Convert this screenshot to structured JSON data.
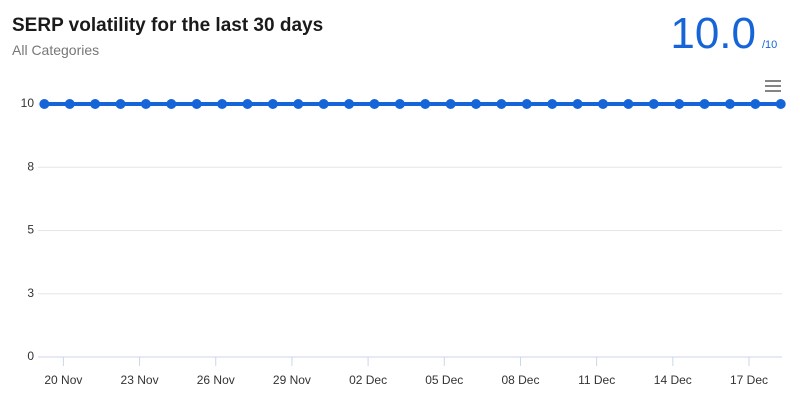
{
  "chart_data": {
    "type": "line",
    "title": "SERP volatility for the last 30 days",
    "subtitle": "All Categories",
    "score": "10.0",
    "score_max": "/10",
    "x": [
      -0.75,
      0.25,
      1.25,
      2.25,
      3.25,
      4.25,
      5.25,
      6.25,
      7.25,
      8.25,
      9.25,
      10.25,
      11.25,
      12.25,
      13.25,
      14.25,
      15.25,
      16.25,
      17.25,
      18.25,
      19.25,
      20.25,
      21.25,
      22.25,
      23.25,
      24.25,
      25.25,
      26.25,
      27.25,
      28.25
    ],
    "series": [
      {
        "color": "#1565d8",
        "values": [
          10,
          10,
          10,
          10,
          10,
          10,
          10,
          10,
          10,
          10,
          10,
          10,
          10,
          10,
          10,
          10,
          10,
          10,
          10,
          10,
          10,
          10,
          10,
          10,
          10,
          10,
          10,
          10,
          10,
          10
        ]
      }
    ],
    "xlim": [
      -1,
      28.3
    ],
    "xticks": [
      {
        "value": 0,
        "label": "20 Nov"
      },
      {
        "value": 3,
        "label": "23 Nov"
      },
      {
        "value": 6,
        "label": "26 Nov"
      },
      {
        "value": 9,
        "label": "29 Nov"
      },
      {
        "value": 12,
        "label": "02 Dec"
      },
      {
        "value": 15,
        "label": "05 Dec"
      },
      {
        "value": 18,
        "label": "08 Dec"
      },
      {
        "value": 21,
        "label": "11 Dec"
      },
      {
        "value": 24,
        "label": "14 Dec"
      },
      {
        "value": 27,
        "label": "17 Dec"
      }
    ],
    "ylim": [
      0,
      10
    ],
    "yticks": [
      0,
      {
        "value": 2.5,
        "label": "3"
      },
      5,
      {
        "value": 7.5,
        "label": "8"
      },
      10
    ],
    "grid": true
  }
}
